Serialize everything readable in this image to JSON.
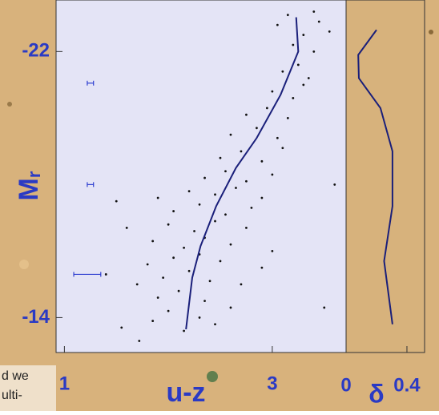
{
  "chart_data": [
    {
      "type": "scatter",
      "x_label": "u-z",
      "y_label": "M",
      "y_label_sub": "r",
      "xlim": [
        0.92,
        3.71
      ],
      "ylim": [
        -12.95,
        -23.55
      ],
      "xticks": [
        1,
        3
      ],
      "yticks": [
        -22,
        -14
      ],
      "point_color": "#111111",
      "line_color": "#1a1f7a",
      "error_color": "#2f3fd0",
      "background": "#e4e4f6",
      "points": {
        "x": [
          1.72,
          1.85,
          2.0,
          2.15,
          2.3,
          2.45,
          1.55,
          1.9,
          2.1,
          2.35,
          2.6,
          1.7,
          1.95,
          2.2,
          2.4,
          2.7,
          1.8,
          2.05,
          2.3,
          2.5,
          2.9,
          1.85,
          2.15,
          2.35,
          2.6,
          3.0,
          1.6,
          2.0,
          2.25,
          2.45,
          2.75,
          2.05,
          2.3,
          2.55,
          2.8,
          1.9,
          2.2,
          2.45,
          2.65,
          2.9,
          2.35,
          2.55,
          2.75,
          3.0,
          2.5,
          2.7,
          2.9,
          3.1,
          2.6,
          2.85,
          3.05,
          2.75,
          2.95,
          3.15,
          3.0,
          3.2,
          3.3,
          3.1,
          3.25,
          3.35,
          3.2,
          3.4,
          3.3,
          3.05,
          3.45,
          3.55,
          3.15,
          3.4,
          3.6,
          3.5,
          1.4,
          1.5
        ],
        "y": [
          -13.3,
          -13.9,
          -14.2,
          -13.6,
          -14.0,
          -13.8,
          -13.7,
          -14.6,
          -14.8,
          -14.5,
          -14.3,
          -15.0,
          -15.2,
          -15.4,
          -15.1,
          -15.0,
          -15.6,
          -15.8,
          -15.9,
          -15.7,
          -15.5,
          -16.3,
          -16.1,
          -16.4,
          -16.2,
          -16.0,
          -16.7,
          -16.8,
          -16.6,
          -16.9,
          -16.7,
          -17.2,
          -17.4,
          -17.1,
          -17.3,
          -17.6,
          -17.8,
          -17.7,
          -17.9,
          -17.6,
          -18.2,
          -18.4,
          -18.1,
          -18.3,
          -18.8,
          -19.0,
          -18.7,
          -19.1,
          -19.5,
          -19.7,
          -19.4,
          -20.1,
          -20.3,
          -20.0,
          -20.8,
          -20.6,
          -21.0,
          -21.4,
          -21.6,
          -21.2,
          -22.2,
          -22.0,
          -22.5,
          -22.8,
          -22.9,
          -22.6,
          -23.1,
          -23.2,
          -18.0,
          -14.3,
          -15.3,
          -17.5
        ]
      },
      "mean_line": {
        "x": [
          3.23,
          3.25,
          3.08,
          2.85,
          2.65,
          2.46,
          2.31,
          2.23,
          2.17
        ],
        "y": [
          -23.03,
          -22.0,
          -20.7,
          -19.4,
          -18.5,
          -17.35,
          -16.15,
          -15.2,
          -13.65
        ]
      },
      "error_bars": {
        "x": [
          1.25,
          1.25,
          1.22
        ],
        "y": [
          -21.05,
          -18.0,
          -15.3
        ],
        "xerr": [
          0.03,
          0.03,
          0.13
        ]
      }
    },
    {
      "type": "line",
      "x_label": "δ",
      "xlim": [
        0,
        0.516
      ],
      "ylim": [
        -12.95,
        -23.55
      ],
      "xticks": [
        0,
        0.4
      ],
      "line_color": "#1a1f7a",
      "background": "#d8b27c",
      "x": [
        0.2,
        0.08,
        0.084,
        0.226,
        0.305,
        0.305,
        0.25,
        0.305
      ],
      "y": [
        -22.65,
        -21.9,
        -21.2,
        -20.3,
        -19.0,
        -17.35,
        -15.7,
        -13.8
      ]
    },
    {
      "type": "text_fragments",
      "lines": [
        "d we",
        "ulti-"
      ]
    }
  ]
}
